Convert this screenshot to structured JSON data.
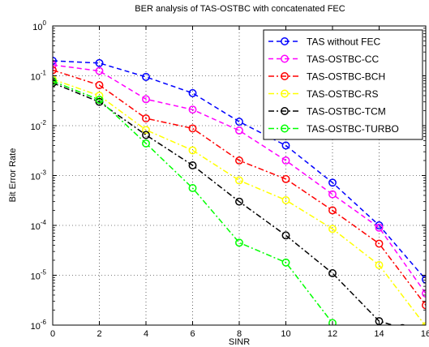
{
  "chart_data": {
    "type": "line",
    "title": "BER analysis of TAS-OSTBC with concatenated FEC",
    "xlabel": "SINR",
    "ylabel": "Bit Error Rate",
    "xlim": [
      0,
      16
    ],
    "ylim": [
      1e-06,
      1
    ],
    "yscale": "log",
    "grid": true,
    "legend_position": "top-right",
    "x_ticks": [
      0,
      2,
      4,
      6,
      8,
      10,
      12,
      14,
      16
    ],
    "y_ticks": [
      {
        "value": 1,
        "base": "10",
        "exp": "0"
      },
      {
        "value": 0.1,
        "base": "10",
        "exp": "-1"
      },
      {
        "value": 0.01,
        "base": "10",
        "exp": "-2"
      },
      {
        "value": 0.001,
        "base": "10",
        "exp": "-3"
      },
      {
        "value": 0.0001,
        "base": "10",
        "exp": "-4"
      },
      {
        "value": 1e-05,
        "base": "10",
        "exp": "-5"
      },
      {
        "value": 1e-06,
        "base": "10",
        "exp": "-6"
      }
    ],
    "series": [
      {
        "name": "TAS without FEC",
        "color": "#0000ff",
        "dash": "dashed",
        "x": [
          0,
          2,
          4,
          6,
          8,
          10,
          12,
          14,
          16
        ],
        "y": [
          0.2,
          0.18,
          0.095,
          0.045,
          0.012,
          0.004,
          0.00072,
          0.0001,
          8.2e-06
        ]
      },
      {
        "name": "TAS-OSTBC-CC",
        "color": "#ff00ff",
        "dash": "dashed",
        "x": [
          0,
          2,
          4,
          6,
          8,
          10,
          12,
          14,
          16
        ],
        "y": [
          0.165,
          0.125,
          0.034,
          0.021,
          0.008,
          0.002,
          0.00042,
          9e-05,
          4.3e-06
        ]
      },
      {
        "name": "TAS-OSTBC-BCH",
        "color": "#ff0000",
        "dash": "dashdot",
        "x": [
          0,
          2,
          4,
          6,
          8,
          10,
          12,
          14,
          16
        ],
        "y": [
          0.13,
          0.065,
          0.014,
          0.0088,
          0.002,
          0.00085,
          0.0002,
          4.3e-05,
          2.5e-06
        ]
      },
      {
        "name": "TAS-OSTBC-RS",
        "color": "#ffff00",
        "dash": "dashdot",
        "x": [
          0,
          2,
          4,
          6,
          8,
          10,
          12,
          14,
          16
        ],
        "y": [
          0.085,
          0.04,
          0.0082,
          0.0032,
          0.0008,
          0.00032,
          8.5e-05,
          1.6e-05,
          9.5e-07
        ]
      },
      {
        "name": "TAS-OSTBC-TCM",
        "color": "#000000",
        "dash": "dashdot",
        "x": [
          0,
          2,
          4,
          6,
          8,
          10,
          12,
          14,
          15
        ],
        "y": [
          0.072,
          0.03,
          0.0065,
          0.0016,
          0.0003,
          6.3e-05,
          1.1e-05,
          1.2e-06,
          8.7e-07
        ]
      },
      {
        "name": "TAS-OSTBC-TURBO",
        "color": "#00ff00",
        "dash": "dashdot",
        "x": [
          0,
          2,
          4,
          6,
          8,
          10,
          12
        ],
        "y": [
          0.078,
          0.033,
          0.0044,
          0.00056,
          4.5e-05,
          1.8e-05,
          1.1e-06
        ]
      }
    ]
  }
}
